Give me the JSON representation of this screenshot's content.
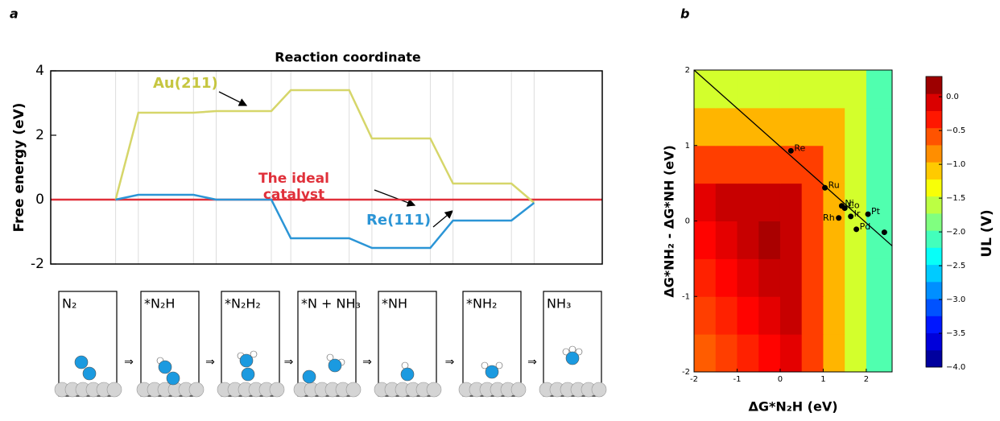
{
  "chart_data": [
    {
      "type": "line",
      "panel": "a",
      "title": "Reaction coordinate",
      "ylabel": "Free energy (eV)",
      "xlim": [
        0,
        8.5
      ],
      "ylim": [
        -2,
        4
      ],
      "yticks": [
        -2,
        0,
        2,
        4
      ],
      "grid": true,
      "x": [
        1,
        1.35,
        2.2,
        2.55,
        3.4,
        3.7,
        4.6,
        4.95,
        5.85,
        6.2,
        7.1,
        7.45
      ],
      "series": [
        {
          "name": "Au(211)",
          "color": "#d6d66a",
          "values": [
            0,
            2.7,
            2.7,
            2.75,
            2.75,
            3.4,
            3.4,
            1.9,
            1.9,
            0.5,
            0.5,
            -0.1
          ]
        },
        {
          "name": "Re(111)",
          "color": "#2b95d6",
          "values": [
            0,
            0.15,
            0.15,
            0,
            0,
            -1.2,
            -1.2,
            -1.5,
            -1.5,
            -0.65,
            -0.65,
            -0.1
          ]
        },
        {
          "name": "The ideal catalyst",
          "color": "#e0303a",
          "x": [
            0,
            8.5
          ],
          "values": [
            0,
            0
          ]
        }
      ],
      "steps": [
        "N₂",
        "*N₂H",
        "*N₂H₂",
        "*N + NH₃",
        "*NH",
        "*NH₂",
        "NH₃"
      ]
    },
    {
      "type": "contour",
      "panel": "b",
      "xlabel": "ΔG*N₂H (eV)",
      "ylabel": "ΔG*NH₂ - ΔG*NH (eV)",
      "xlim": [
        -2,
        2.6
      ],
      "ylim": [
        -2,
        2
      ],
      "xticks": [
        -2,
        -1,
        0,
        1,
        2
      ],
      "yticks": [
        -2,
        -1,
        0,
        1,
        2
      ],
      "x_edges": [
        -2,
        -1.5,
        -1,
        -0.5,
        0,
        0.5,
        1,
        1.5,
        2,
        2.6
      ],
      "y_edges": [
        -2,
        -1.5,
        -1,
        -0.5,
        0,
        0.5,
        1,
        1.5,
        2
      ],
      "z": [
        [
          -0.625,
          -0.5,
          -0.375,
          -0.25,
          -0.125,
          -0.5,
          -1,
          -1.5,
          -2.05
        ],
        [
          -0.5,
          -0.375,
          -0.25,
          -0.125,
          0,
          -0.5,
          -1,
          -1.5,
          -2.05
        ],
        [
          -0.375,
          -0.25,
          -0.125,
          0,
          0,
          -0.5,
          -1,
          -1.5,
          -2.05
        ],
        [
          -0.25,
          -0.125,
          0,
          0.125,
          0,
          -0.5,
          -1,
          -1.5,
          -2.05
        ],
        [
          -0.125,
          0,
          0,
          0,
          0,
          -0.5,
          -1,
          -1.5,
          -2.05
        ],
        [
          -0.5,
          -0.5,
          -0.5,
          -0.5,
          -0.5,
          -0.5,
          -1,
          -1.5,
          -2.05
        ],
        [
          -1,
          -1,
          -1,
          -1,
          -1,
          -1,
          -1,
          -1.5,
          -2.05
        ],
        [
          -1.5,
          -1.5,
          -1.5,
          -1.5,
          -1.5,
          -1.5,
          -1.5,
          -1.5,
          -2.05
        ]
      ],
      "colormap": "jet",
      "zlim": [
        -4,
        0.3
      ],
      "zlabel": "UL (V)",
      "zticks": [
        {
          "value": 0,
          "label": "0.0"
        },
        {
          "value": -0.5,
          "label": "−0.5"
        },
        {
          "value": -1,
          "label": "−1.0"
        },
        {
          "value": -1.5,
          "label": "−1.5"
        },
        {
          "value": -2,
          "label": "−2.0"
        },
        {
          "value": -2.5,
          "label": "−2.5"
        },
        {
          "value": -3,
          "label": "−3.0"
        },
        {
          "value": -3.5,
          "label": "−3.5"
        },
        {
          "value": -4,
          "label": "−4.0"
        }
      ],
      "points": {
        "color": "#000000",
        "labels": [
          "Re",
          "Ru",
          "Ni",
          "Co",
          "Ir",
          "Pt",
          "Rh",
          "Pd",
          null
        ],
        "x": [
          0.25,
          1.04,
          1.43,
          1.5,
          1.64,
          2.04,
          1.36,
          1.77,
          2.42
        ],
        "y": [
          0.93,
          0.44,
          0.2,
          0.17,
          0.06,
          0.09,
          0.04,
          -0.11,
          -0.15
        ]
      },
      "line": {
        "color": "#000000",
        "x": [
          -2,
          2.6
        ],
        "values": [
          2,
          -0.33
        ]
      }
    }
  ]
}
